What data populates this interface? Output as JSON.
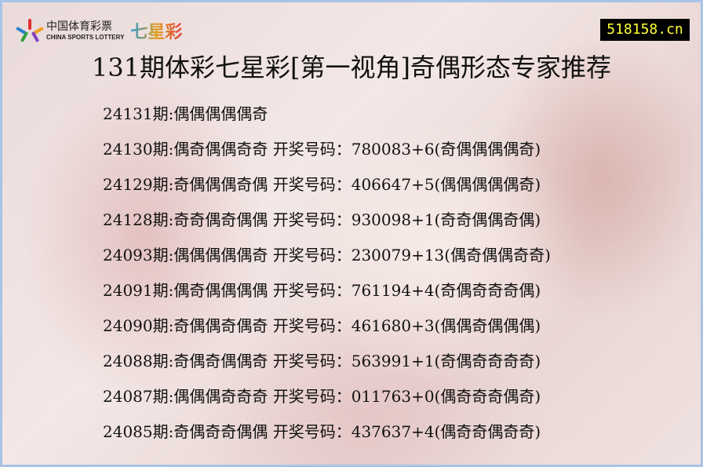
{
  "header": {
    "logo_cn": "中国体育彩票",
    "logo_en": "CHINA SPORTS LOTTERY",
    "logo_game": "七星彩",
    "site": "518158.cn",
    "title": "131期体彩七星彩[第一视角]奇偶形态专家推荐"
  },
  "rows": [
    "24131期:偶偶偶偶偶奇",
    "24130期:偶奇偶偶奇奇 开奖号码：780083+6(奇偶偶偶偶奇)",
    "24129期:奇偶偶偶奇偶 开奖号码：406647+5(偶偶偶偶偶奇)",
    "24128期:奇奇偶奇偶偶 开奖号码：930098+1(奇奇偶偶奇偶)",
    "24093期:偶偶偶偶偶奇 开奖号码：230079+13(偶奇偶偶奇奇)",
    "24091期:偶奇偶偶偶偶 开奖号码：761194+4(奇偶奇奇奇偶)",
    "24090期:奇偶偶奇偶奇 开奖号码：461680+3(偶偶奇偶偶偶)",
    "24088期:奇偶奇偶偶奇 开奖号码：563991+1(奇偶奇奇奇奇)",
    "24087期:偶偶偶奇奇奇 开奖号码：011763+0(偶奇奇奇偶奇)",
    "24085期:奇偶奇奇偶偶 开奖号码：437637+4(偶奇奇偶奇奇)"
  ],
  "colors": {
    "border": "#a9c3e8",
    "site_bg": "#000000",
    "site_fg": "#ffff33"
  }
}
